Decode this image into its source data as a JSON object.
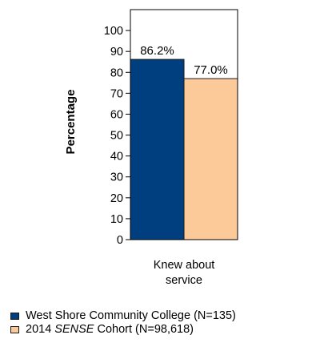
{
  "chart_data": {
    "type": "bar",
    "ylabel": "Percentage",
    "ylim": [
      0,
      110
    ],
    "yticks": [
      0,
      10,
      20,
      30,
      40,
      50,
      60,
      70,
      80,
      90,
      100
    ],
    "categories": [
      "Knew about service"
    ],
    "category_lines": [
      "Knew about",
      "service"
    ],
    "series": [
      {
        "name": "West Shore Community College (N=135)",
        "values": [
          86.2
        ],
        "label": "86.2%",
        "color": "#003f7f"
      },
      {
        "name": "2014 SENSE Cohort (N=98,618)",
        "values": [
          77.0
        ],
        "label": "77.0%",
        "color": "#fcc999"
      }
    ],
    "legend_placement": "bottom",
    "grid": false
  },
  "legend": {
    "items": [
      {
        "text": "West Shore Community College (N=135)"
      },
      {
        "pre": "2014 ",
        "italic": "SENSE",
        "post": " Cohort (N=98,618)"
      }
    ]
  }
}
